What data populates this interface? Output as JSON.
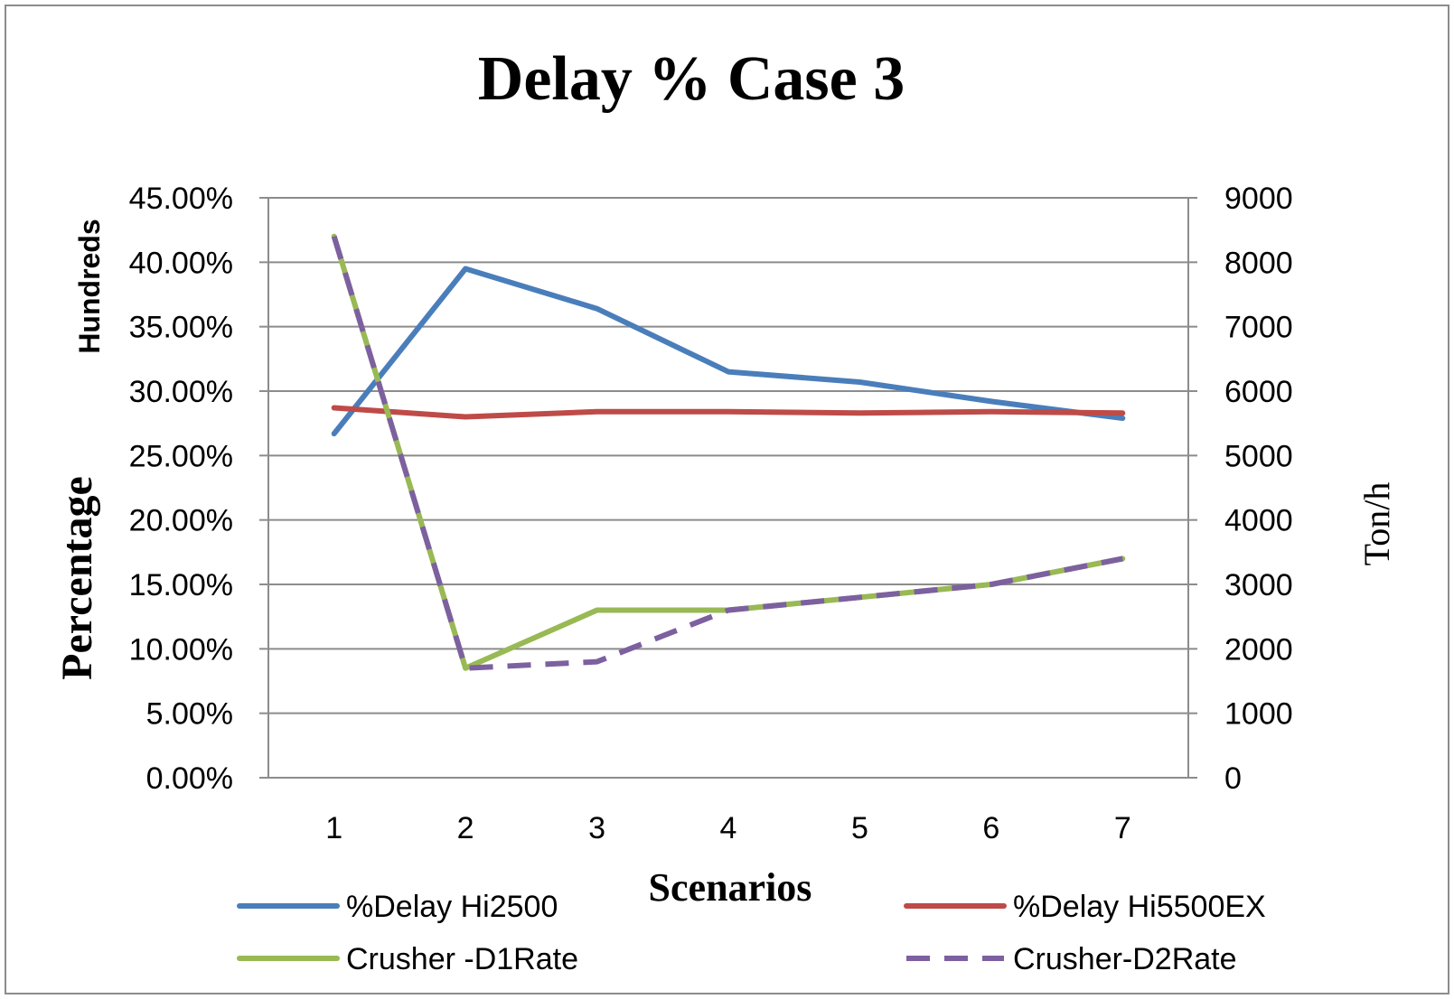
{
  "chart_data": {
    "type": "line",
    "title": "Delay % Case 3",
    "xlabel": "Scenarios",
    "ylabel_left": "Percentage",
    "ylabel_left_units": "Hundreds",
    "ylabel_right": "Ton/h",
    "categories": [
      "1",
      "2",
      "3",
      "4",
      "5",
      "6",
      "7"
    ],
    "y_left_range": [
      0,
      45
    ],
    "y_left_ticks": [
      "0.00%",
      "5.00%",
      "10.00%",
      "15.00%",
      "20.00%",
      "25.00%",
      "30.00%",
      "35.00%",
      "40.00%",
      "45.00%"
    ],
    "y_right_range": [
      0,
      9000
    ],
    "y_right_ticks": [
      "0",
      "1000",
      "2000",
      "3000",
      "4000",
      "5000",
      "6000",
      "7000",
      "8000",
      "9000"
    ],
    "grid": true,
    "legend_position": "bottom",
    "series": [
      {
        "name": "%Delay Hi2500",
        "axis": "left",
        "color": "#4a7ebb",
        "dash": false,
        "values": [
          26.7,
          39.5,
          36.4,
          31.5,
          30.7,
          29.2,
          27.9
        ]
      },
      {
        "name": "%Delay Hi5500EX",
        "axis": "left",
        "color": "#be4b48",
        "dash": false,
        "values": [
          28.7,
          28.0,
          28.4,
          28.4,
          28.3,
          28.4,
          28.3
        ]
      },
      {
        "name": "Crusher -D1Rate",
        "axis": "right",
        "color": "#98b954",
        "dash": false,
        "values": [
          8400,
          1700,
          2600,
          2600,
          2800,
          3000,
          3400
        ]
      },
      {
        "name": "Crusher-D2Rate",
        "axis": "right",
        "color": "#7d60a0",
        "dash": true,
        "values": [
          8400,
          1700,
          1800,
          2600,
          2800,
          3000,
          3400
        ]
      }
    ]
  }
}
